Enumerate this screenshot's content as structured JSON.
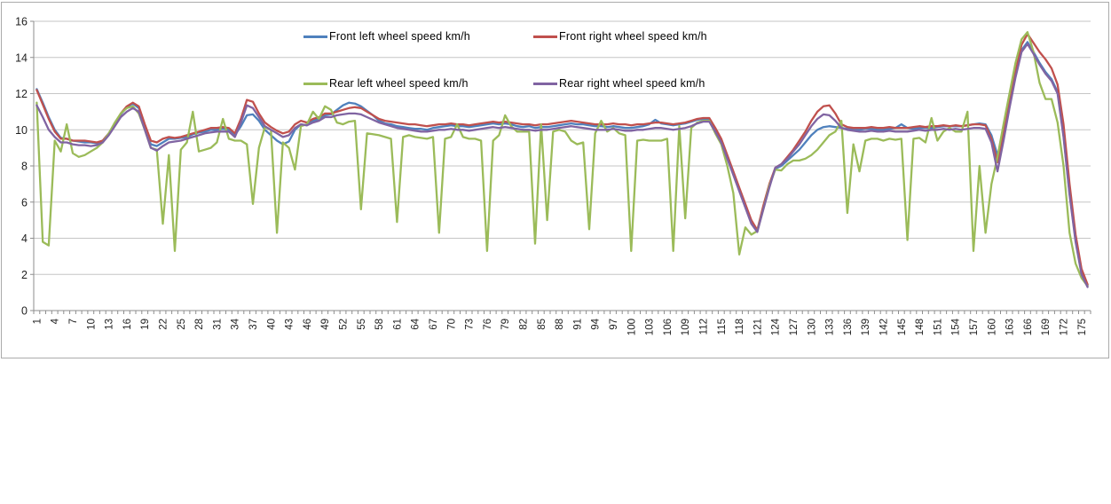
{
  "colors": {
    "gridline": "#c6c6c6",
    "axis": "#8e8e8e",
    "tick_label": "#1f1f1f",
    "frame_border": "#ababab",
    "background": "#ffffff"
  },
  "chart_data": {
    "type": "line",
    "title": "",
    "xlabel": "",
    "ylabel": "",
    "grid": true,
    "legend_position": "top-inside",
    "y_axis": {
      "min": 0,
      "max": 16,
      "step": 2,
      "tick_labels": [
        "0",
        "2",
        "4",
        "6",
        "8",
        "10",
        "12",
        "14",
        "16"
      ]
    },
    "x_axis": {
      "min": 1,
      "max": 176,
      "label_interval": 3,
      "tick_labels": [
        "1",
        "4",
        "7",
        "10",
        "13",
        "16",
        "19",
        "22",
        "25",
        "28",
        "31",
        "34",
        "37",
        "40",
        "43",
        "46",
        "49",
        "52",
        "55",
        "58",
        "61",
        "64",
        "67",
        "70",
        "73",
        "76",
        "79",
        "82",
        "85",
        "88",
        "91",
        "94",
        "97",
        "100",
        "103",
        "106",
        "109",
        "112",
        "115",
        "118",
        "121",
        "124",
        "127",
        "130",
        "133",
        "136",
        "139",
        "142",
        "145",
        "148",
        "151",
        "154",
        "157",
        "160",
        "163",
        "166",
        "169",
        "172",
        "175"
      ]
    },
    "series": [
      {
        "name": "Front left wheel speed km/h",
        "color": "#4F81BD",
        "values": [
          12.25,
          11.5,
          10.7,
          10.0,
          9.55,
          9.5,
          9.4,
          9.35,
          9.3,
          9.3,
          9.25,
          9.4,
          9.8,
          10.3,
          10.85,
          11.25,
          11.45,
          11.2,
          10.2,
          9.2,
          9.1,
          9.3,
          9.5,
          9.5,
          9.55,
          9.6,
          9.75,
          9.85,
          9.9,
          10.0,
          10.0,
          10.05,
          10.0,
          9.7,
          10.2,
          10.8,
          10.85,
          10.5,
          10.0,
          9.7,
          9.4,
          9.2,
          9.35,
          10.0,
          10.3,
          10.25,
          10.5,
          10.6,
          10.8,
          10.85,
          11.1,
          11.35,
          11.5,
          11.45,
          11.3,
          11.05,
          10.8,
          10.5,
          10.35,
          10.3,
          10.2,
          10.15,
          10.1,
          10.05,
          10.05,
          10.0,
          10.1,
          10.15,
          10.2,
          10.25,
          10.2,
          10.2,
          10.15,
          10.2,
          10.25,
          10.3,
          10.35,
          10.3,
          10.35,
          10.3,
          10.2,
          10.15,
          10.2,
          10.1,
          10.15,
          10.15,
          10.2,
          10.25,
          10.3,
          10.35,
          10.3,
          10.3,
          10.25,
          10.2,
          10.2,
          10.15,
          10.2,
          10.15,
          10.1,
          10.1,
          10.15,
          10.2,
          10.3,
          10.55,
          10.35,
          10.3,
          10.25,
          10.3,
          10.35,
          10.45,
          10.55,
          10.6,
          10.6,
          10.0,
          9.4,
          8.5,
          7.6,
          6.7,
          5.8,
          4.9,
          4.4,
          5.7,
          6.9,
          7.85,
          8.0,
          8.3,
          8.6,
          8.9,
          9.3,
          9.7,
          10.0,
          10.15,
          10.2,
          10.15,
          10.1,
          10.05,
          10.0,
          10.0,
          10.05,
          10.05,
          10.0,
          10.0,
          10.05,
          10.1,
          10.3,
          10.1,
          10.05,
          10.1,
          10.1,
          10.1,
          10.15,
          10.2,
          10.2,
          10.2,
          10.2,
          10.25,
          10.3,
          10.35,
          10.3,
          9.7,
          8.6,
          9.6,
          11.3,
          13.0,
          14.4,
          14.85,
          14.3,
          13.7,
          13.2,
          12.8,
          12.1,
          9.7,
          6.5,
          3.9,
          2.1,
          1.4
        ]
      },
      {
        "name": "Front right wheel speed km/h",
        "color": "#C0504D",
        "values": [
          12.2,
          11.4,
          10.6,
          9.9,
          9.5,
          9.5,
          9.4,
          9.4,
          9.4,
          9.35,
          9.3,
          9.4,
          9.8,
          10.3,
          10.9,
          11.3,
          11.5,
          11.3,
          10.3,
          9.4,
          9.3,
          9.5,
          9.6,
          9.55,
          9.6,
          9.7,
          9.8,
          9.9,
          10.0,
          10.1,
          10.1,
          10.15,
          10.1,
          9.8,
          10.6,
          11.65,
          11.55,
          10.9,
          10.4,
          10.15,
          9.95,
          9.8,
          9.9,
          10.3,
          10.5,
          10.4,
          10.6,
          10.7,
          10.9,
          10.9,
          11.0,
          11.1,
          11.2,
          11.25,
          11.2,
          11.0,
          10.8,
          10.6,
          10.5,
          10.45,
          10.4,
          10.35,
          10.3,
          10.3,
          10.25,
          10.2,
          10.25,
          10.3,
          10.3,
          10.35,
          10.3,
          10.3,
          10.25,
          10.3,
          10.35,
          10.4,
          10.45,
          10.4,
          10.45,
          10.4,
          10.35,
          10.3,
          10.3,
          10.25,
          10.3,
          10.3,
          10.35,
          10.4,
          10.45,
          10.5,
          10.45,
          10.4,
          10.35,
          10.3,
          10.3,
          10.3,
          10.35,
          10.3,
          10.3,
          10.25,
          10.3,
          10.3,
          10.35,
          10.4,
          10.4,
          10.35,
          10.3,
          10.35,
          10.4,
          10.5,
          10.6,
          10.65,
          10.65,
          10.1,
          9.5,
          8.6,
          7.7,
          6.8,
          5.9,
          5.0,
          4.45,
          5.8,
          7.0,
          7.9,
          8.1,
          8.5,
          8.9,
          9.4,
          9.9,
          10.5,
          11.0,
          11.3,
          11.35,
          10.9,
          10.3,
          10.15,
          10.1,
          10.1,
          10.1,
          10.15,
          10.1,
          10.1,
          10.15,
          10.1,
          10.1,
          10.1,
          10.15,
          10.2,
          10.15,
          10.2,
          10.2,
          10.25,
          10.2,
          10.25,
          10.2,
          10.25,
          10.3,
          10.3,
          10.25,
          9.5,
          8.2,
          9.8,
          11.5,
          13.2,
          14.7,
          15.3,
          14.8,
          14.3,
          13.9,
          13.4,
          12.5,
          10.3,
          7.0,
          4.2,
          2.3,
          1.45
        ]
      },
      {
        "name": "Rear left wheel speed km/h",
        "color": "#9BBB59",
        "values": [
          11.5,
          3.8,
          3.6,
          9.4,
          8.8,
          10.3,
          8.7,
          8.5,
          8.6,
          8.8,
          9.0,
          9.3,
          9.8,
          10.4,
          10.9,
          11.2,
          11.3,
          10.9,
          10.0,
          9.0,
          8.9,
          4.8,
          8.6,
          3.3,
          8.9,
          9.3,
          11.0,
          8.8,
          8.9,
          9.0,
          9.3,
          10.6,
          9.5,
          9.4,
          9.4,
          9.2,
          5.9,
          9.0,
          10.15,
          10.0,
          4.3,
          9.3,
          9.0,
          7.8,
          10.2,
          10.3,
          11.0,
          10.6,
          11.3,
          11.1,
          10.4,
          10.3,
          10.45,
          10.5,
          5.6,
          9.8,
          9.75,
          9.7,
          9.6,
          9.5,
          4.9,
          9.6,
          9.7,
          9.6,
          9.55,
          9.5,
          9.6,
          4.3,
          9.5,
          9.6,
          10.3,
          9.6,
          9.5,
          9.5,
          9.4,
          3.3,
          9.4,
          9.7,
          10.8,
          10.2,
          9.9,
          9.9,
          9.9,
          3.7,
          10.3,
          5.0,
          9.9,
          10.0,
          9.9,
          9.4,
          9.2,
          9.3,
          4.5,
          9.8,
          10.5,
          9.9,
          10.1,
          9.8,
          9.7,
          3.3,
          9.4,
          9.45,
          9.4,
          9.4,
          9.4,
          9.5,
          3.3,
          10.2,
          5.1,
          10.1,
          10.4,
          10.5,
          10.5,
          9.8,
          9.2,
          8.0,
          6.5,
          3.1,
          4.6,
          4.2,
          4.4,
          5.6,
          6.9,
          7.8,
          7.75,
          8.1,
          8.3,
          8.3,
          8.4,
          8.6,
          8.9,
          9.3,
          9.7,
          9.9,
          10.5,
          5.4,
          9.2,
          7.7,
          9.4,
          9.5,
          9.5,
          9.4,
          9.5,
          9.45,
          9.5,
          3.9,
          9.5,
          9.55,
          9.3,
          10.65,
          9.4,
          9.9,
          10.1,
          9.9,
          9.9,
          11.0,
          3.3,
          8.0,
          4.3,
          7.0,
          8.5,
          10.3,
          12.0,
          13.7,
          15.0,
          15.4,
          14.3,
          12.6,
          11.7,
          11.7,
          10.4,
          8.0,
          4.3,
          2.6,
          1.8,
          1.35
        ]
      },
      {
        "name": "Rear right wheel speed km/h",
        "color": "#8064A2",
        "values": [
          11.35,
          10.7,
          10.0,
          9.6,
          9.3,
          9.3,
          9.2,
          9.15,
          9.15,
          9.1,
          9.15,
          9.3,
          9.7,
          10.2,
          10.7,
          11.0,
          11.2,
          11.0,
          10.0,
          9.0,
          8.85,
          9.1,
          9.3,
          9.35,
          9.4,
          9.5,
          9.6,
          9.7,
          9.8,
          9.85,
          9.9,
          9.9,
          9.9,
          9.6,
          10.4,
          11.35,
          11.2,
          10.7,
          10.2,
          10.0,
          9.8,
          9.6,
          9.7,
          10.1,
          10.3,
          10.25,
          10.4,
          10.5,
          10.7,
          10.7,
          10.8,
          10.85,
          10.9,
          10.9,
          10.85,
          10.7,
          10.55,
          10.4,
          10.3,
          10.2,
          10.1,
          10.05,
          10.0,
          9.95,
          9.9,
          9.9,
          9.95,
          10.0,
          10.0,
          10.05,
          10.0,
          10.0,
          9.95,
          10.0,
          10.05,
          10.1,
          10.15,
          10.1,
          10.15,
          10.1,
          10.05,
          10.0,
          10.0,
          9.95,
          10.0,
          10.0,
          10.05,
          10.1,
          10.15,
          10.2,
          10.15,
          10.1,
          10.05,
          10.0,
          10.0,
          10.0,
          10.05,
          10.0,
          9.95,
          9.95,
          10.0,
          10.0,
          10.05,
          10.1,
          10.1,
          10.05,
          10.0,
          10.05,
          10.1,
          10.2,
          10.35,
          10.45,
          10.45,
          9.9,
          9.3,
          8.4,
          7.5,
          6.6,
          5.7,
          4.8,
          4.35,
          5.6,
          6.8,
          7.9,
          8.1,
          8.4,
          8.8,
          9.2,
          9.7,
          10.2,
          10.6,
          10.85,
          10.8,
          10.5,
          10.1,
          10.0,
          9.95,
          9.9,
          9.9,
          9.95,
          9.9,
          9.9,
          9.95,
          9.9,
          9.9,
          9.9,
          9.95,
          10.0,
          9.95,
          10.0,
          10.0,
          10.05,
          10.0,
          10.05,
          10.0,
          10.05,
          10.1,
          10.1,
          10.05,
          9.3,
          7.7,
          9.4,
          11.2,
          12.9,
          14.3,
          14.75,
          14.2,
          13.6,
          13.1,
          12.7,
          12.0,
          9.6,
          6.4,
          3.8,
          2.0,
          1.3
        ]
      }
    ]
  }
}
